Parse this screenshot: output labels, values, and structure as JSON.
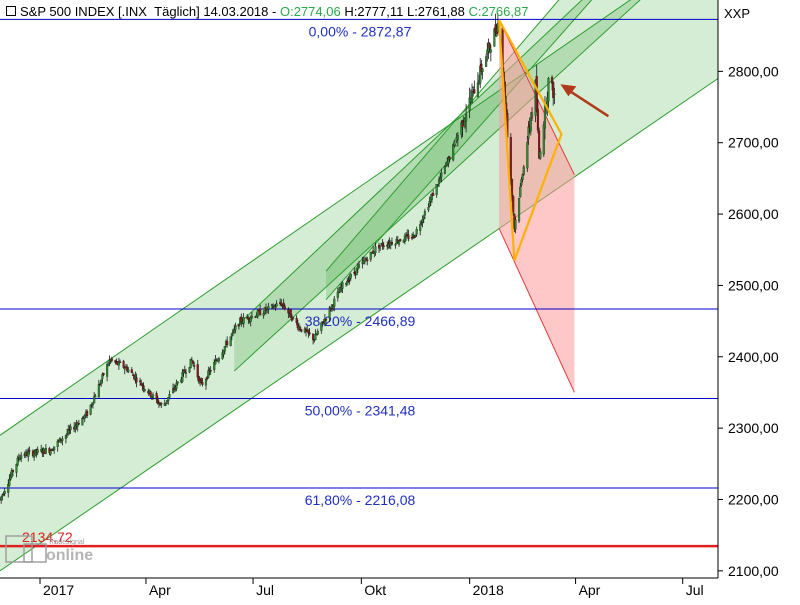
{
  "header": {
    "symbol": "S&P 500 INDEX [.INX",
    "interval": "Täglich]",
    "date": "14.03.2018",
    "open": "O:2774,06",
    "high": "H:2777,11",
    "low": "L:2761,88",
    "close": "C:2766,87",
    "exchange": "XXP"
  },
  "watermark": {
    "line1": "Tradesignal",
    "line2": "online"
  },
  "colors": {
    "candle_up": "#2e8b2e",
    "candle_down": "#8b1a1a",
    "channel_fill": "#2e9e2e",
    "channel_line": "#2e9e2e",
    "fib_line": "#0000cc",
    "fib_text": "#1f2fbf",
    "support_line": "#e02020",
    "triangle_line": "#ffb000",
    "projection_fill": "#ff9a9a",
    "arrow": "#b03a1a"
  },
  "chart_data": {
    "type": "candlestick",
    "title": "S&P 500 INDEX [.INX  Täglich] 14.03.2018",
    "ylim": [
      2090,
      2900
    ],
    "y_ticks": [
      2100,
      2200,
      2300,
      2400,
      2500,
      2600,
      2700,
      2800
    ],
    "y_tick_labels": [
      "2100,00",
      "2200,00",
      "2300,00",
      "2400,00",
      "2500,00",
      "2600,00",
      "2700,00",
      "2800,00"
    ],
    "x_range": [
      "2016-11-28",
      "2018-07-31"
    ],
    "x_ticks": [
      {
        "date": "2017-01-01",
        "label": "2017"
      },
      {
        "date": "2017-04-01",
        "label": "Apr"
      },
      {
        "date": "2017-07-01",
        "label": "Jul"
      },
      {
        "date": "2017-10-01",
        "label": "Okt"
      },
      {
        "date": "2018-01-01",
        "label": "2018"
      },
      {
        "date": "2018-04-01",
        "label": "Apr"
      },
      {
        "date": "2018-07-01",
        "label": "Jul"
      }
    ],
    "price_path": [
      [
        "2016-11-28",
        2200
      ],
      [
        "2016-12-15",
        2262
      ],
      [
        "2017-01-10",
        2270
      ],
      [
        "2017-02-10",
        2320
      ],
      [
        "2017-03-01",
        2395
      ],
      [
        "2017-03-15",
        2385
      ],
      [
        "2017-04-15",
        2330
      ],
      [
        "2017-05-10",
        2395
      ],
      [
        "2017-05-18",
        2360
      ],
      [
        "2017-06-20",
        2450
      ],
      [
        "2017-07-25",
        2475
      ],
      [
        "2017-08-10",
        2440
      ],
      [
        "2017-08-22",
        2425
      ],
      [
        "2017-09-15",
        2500
      ],
      [
        "2017-10-15",
        2555
      ],
      [
        "2017-11-15",
        2570
      ],
      [
        "2017-12-15",
        2680
      ],
      [
        "2018-01-26",
        2872
      ],
      [
        "2018-02-08",
        2581
      ],
      [
        "2018-02-26",
        2780
      ],
      [
        "2018-03-01",
        2678
      ],
      [
        "2018-03-09",
        2786
      ],
      [
        "2018-03-14",
        2767
      ]
    ],
    "fib_levels": [
      {
        "label": "0,00% - 2872,87",
        "value": 2872.87
      },
      {
        "label": "38,20% - 2466,89",
        "value": 2466.89
      },
      {
        "label": "50,00% - 2341,48",
        "value": 2341.48
      },
      {
        "label": "61,80% - 2216,08",
        "value": 2216.08
      }
    ],
    "support": {
      "label": "2134,72",
      "value": 2134.72
    },
    "channels": [
      {
        "lower": [
          [
            "2016-11-28",
            2100
          ],
          [
            "2018-07-31",
            2790
          ]
        ],
        "upper": [
          [
            "2016-11-28",
            2290
          ],
          [
            "2018-07-31",
            2985
          ]
        ]
      },
      {
        "lower": [
          [
            "2017-06-15",
            2380
          ],
          [
            "2018-07-31",
            3000
          ]
        ],
        "upper": [
          [
            "2017-06-15",
            2440
          ],
          [
            "2018-07-31",
            3080
          ]
        ]
      },
      {
        "lower": [
          [
            "2017-09-01",
            2480
          ],
          [
            "2018-07-31",
            3100
          ]
        ],
        "upper": [
          [
            "2017-09-01",
            2520
          ],
          [
            "2018-07-31",
            3160
          ]
        ]
      }
    ],
    "triangle": [
      [
        "2018-01-26",
        2872
      ],
      [
        "2018-02-08",
        2535
      ],
      [
        "2018-03-20",
        2712
      ]
    ],
    "projection": [
      [
        "2018-01-26",
        2872
      ],
      [
        "2018-03-31",
        2655
      ],
      [
        "2018-03-31",
        2350
      ],
      [
        "2018-01-26",
        2580
      ]
    ]
  }
}
